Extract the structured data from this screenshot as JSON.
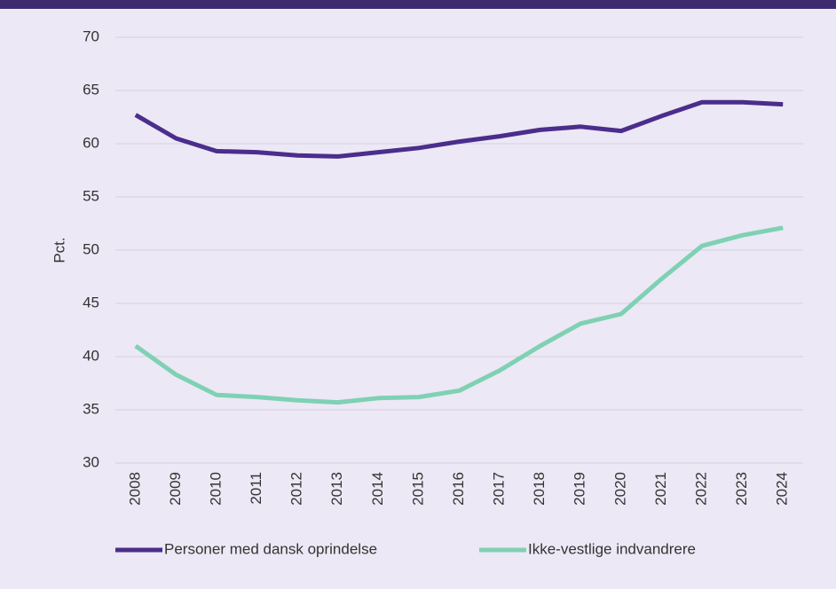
{
  "chart_data": {
    "type": "line",
    "y_label": "Pct.",
    "x": [
      "2008",
      "2009",
      "2010",
      "2011",
      "2012",
      "2013",
      "2014",
      "2015",
      "2016",
      "2017",
      "2018",
      "2019",
      "2020",
      "2021",
      "2022",
      "2023",
      "2024"
    ],
    "series": [
      {
        "name": "Personer med dansk oprindelse",
        "color": "#4b2d8c",
        "values": [
          62.7,
          60.5,
          59.3,
          59.2,
          58.9,
          58.8,
          59.2,
          59.6,
          60.2,
          60.7,
          61.3,
          61.6,
          61.2,
          62.6,
          63.9,
          63.9,
          63.7
        ]
      },
      {
        "name": "Ikke-vestlige indvandrere",
        "color": "#7fd1b3",
        "values": [
          41.0,
          38.3,
          36.4,
          36.2,
          35.9,
          35.7,
          36.1,
          36.2,
          36.8,
          38.7,
          41.0,
          43.1,
          44.0,
          47.3,
          50.4,
          51.4,
          52.1
        ]
      }
    ],
    "ylim": [
      30,
      70
    ],
    "yticks": [
      30,
      35,
      40,
      45,
      50,
      55,
      60,
      65,
      70
    ],
    "grid": true
  }
}
